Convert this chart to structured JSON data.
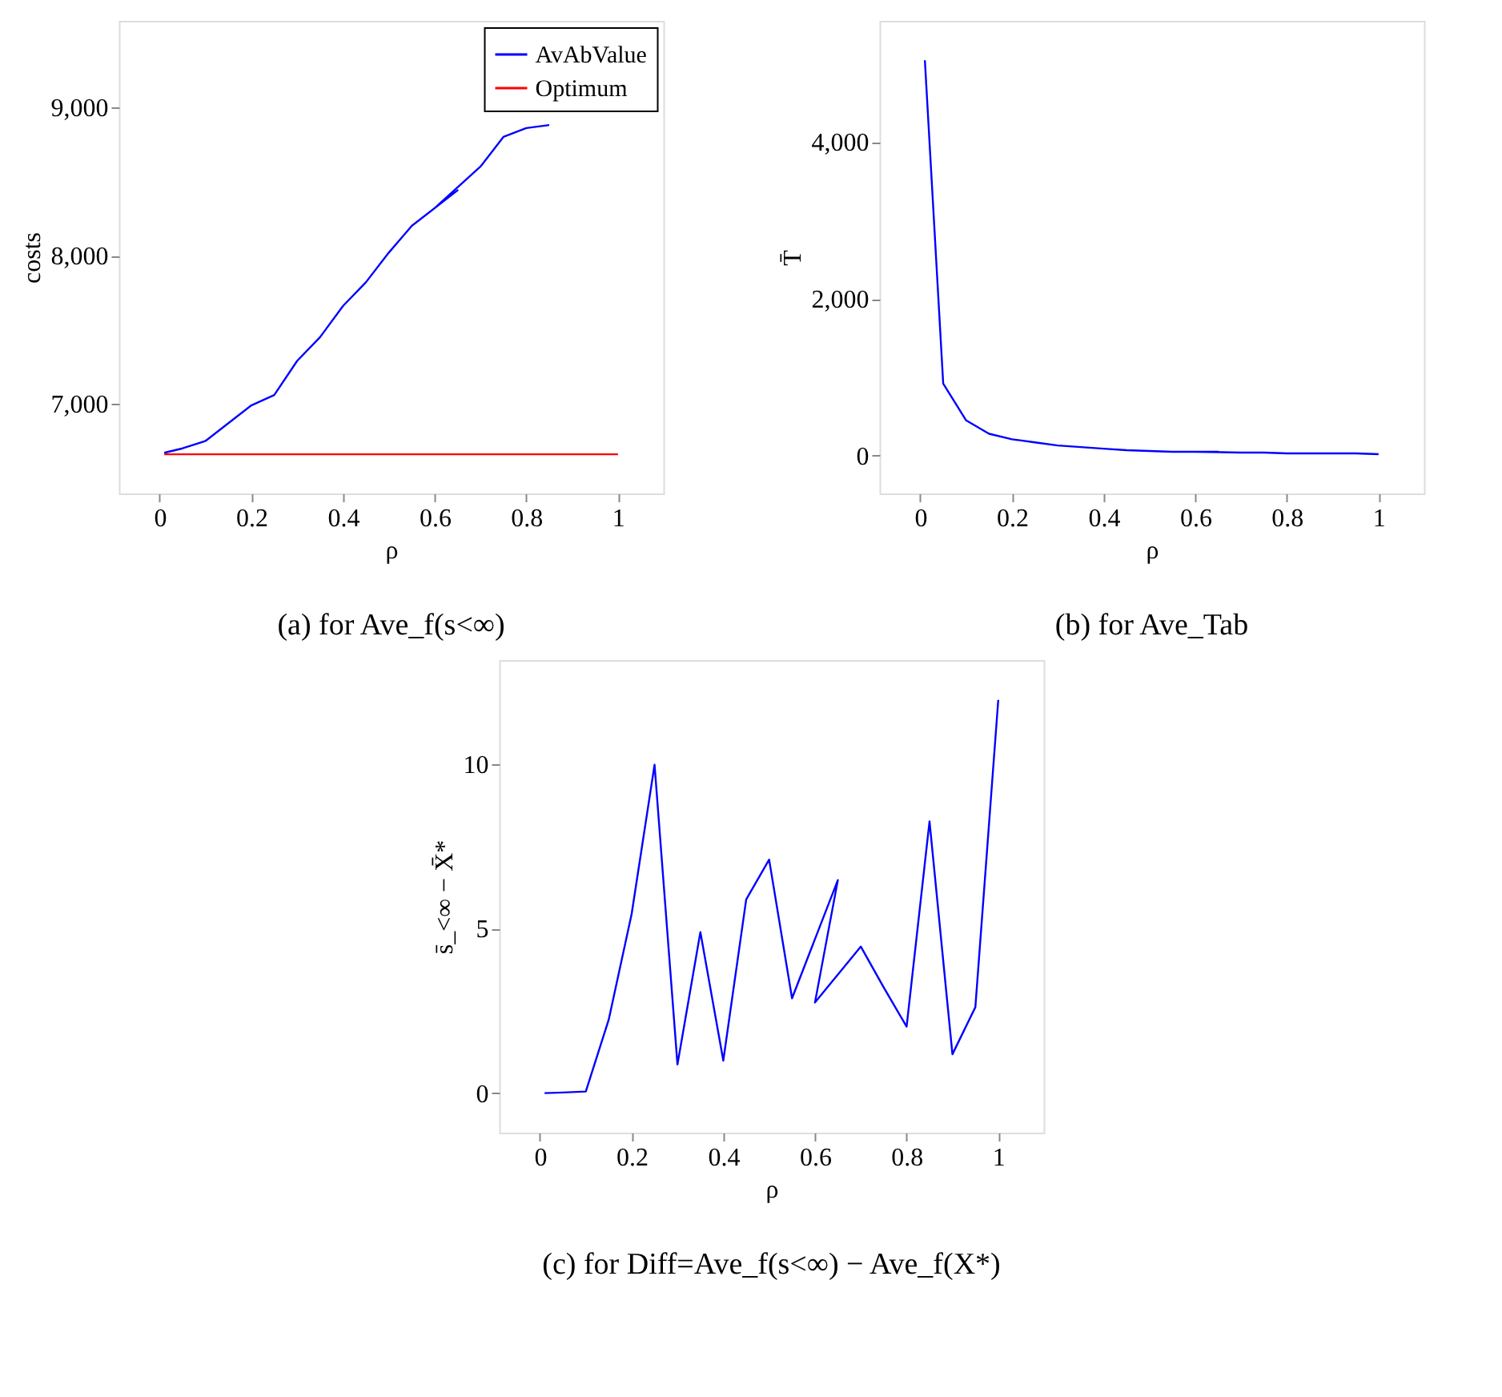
{
  "chart_data": [
    {
      "type": "line",
      "title": "(a) for Ave_f(s<∞)",
      "xlabel": "ρ",
      "ylabel": "costs",
      "legend": "top right",
      "series": [
        {
          "name": "AvAbValue",
          "color": "#0000ff",
          "x": [
            0.01,
            0.05,
            0.1,
            0.15,
            0.2,
            0.25,
            0.3,
            0.35,
            0.4,
            0.45,
            0.5,
            0.55,
            0.65,
            0.6,
            0.7,
            0.75,
            0.8,
            0.85
          ],
          "values": [
            6670,
            6700,
            6750,
            6870,
            6990,
            7060,
            7290,
            7450,
            7660,
            7820,
            8020,
            8200,
            8440,
            8320,
            8600,
            8800,
            8860,
            8880
          ]
        },
        {
          "name": "Optimum",
          "color": "#ff0000",
          "x": [
            0.01,
            1
          ],
          "values": [
            6660,
            6660
          ]
        }
      ],
      "xlim": [
        -0.089,
        1.099
      ],
      "ylim": [
        6396,
        9583
      ],
      "xticks": [
        0,
        0.2,
        0.4,
        0.6,
        0.8,
        1
      ],
      "yticks": [
        {
          "value": 7000,
          "label": "7,000"
        },
        {
          "value": 8000,
          "label": "8,000"
        },
        {
          "value": 9000,
          "label": "9,000"
        }
      ]
    },
    {
      "type": "line",
      "title": "(b) for Ave_Tab",
      "xlabel": "ρ",
      "ylabel": "T̄",
      "series": [
        {
          "color": "#0000ff",
          "x": [
            0.01,
            0.05,
            0.1,
            0.15,
            0.2,
            0.25,
            0.3,
            0.35,
            0.4,
            0.45,
            0.5,
            0.55,
            0.65,
            0.6,
            0.7,
            0.75,
            0.8,
            0.85,
            0.9,
            0.95,
            1
          ],
          "values": [
            5040,
            920,
            450,
            280,
            210,
            170,
            130,
            110,
            90,
            70,
            60,
            50,
            50,
            50,
            40,
            40,
            30,
            30,
            30,
            30,
            20
          ]
        }
      ],
      "xlim": [
        -0.089,
        1.099
      ],
      "ylim": [
        -481,
        5543
      ],
      "xticks": [
        0,
        0.2,
        0.4,
        0.6,
        0.8,
        1
      ],
      "yticks": [
        0,
        {
          "value": 2000,
          "label": "2,000"
        },
        {
          "value": 4000,
          "label": "4,000"
        }
      ]
    },
    {
      "type": "line",
      "title": "(c) for Diff=Ave_f(s<∞) − Ave_f(X*)",
      "xlabel": "ρ",
      "ylabel": "s̄_<∞ − X̄*",
      "series": [
        {
          "color": "#0000ff",
          "x": [
            0.01,
            0.05,
            0.1,
            0.15,
            0.2,
            0.25,
            0.3,
            0.35,
            0.4,
            0.45,
            0.5,
            0.55,
            0.65,
            0.6,
            0.7,
            0.75,
            0.8,
            0.85,
            0.9,
            0.95,
            1
          ],
          "values": [
            0,
            0.02,
            0.05,
            2.23,
            5.44,
            9.97,
            0.87,
            4.89,
            0.99,
            5.88,
            7.09,
            2.88,
            6.47,
            2.75,
            4.45,
            3.21,
            2.02,
            8.25,
            1.18,
            2.61,
            11.94
          ]
        }
      ],
      "xlim": [
        -0.089,
        1.099
      ],
      "ylim": [
        -1.2,
        13.15
      ],
      "xticks": [
        0,
        0.2,
        0.4,
        0.6,
        0.8,
        1
      ],
      "yticks": [
        0,
        5,
        10
      ]
    }
  ]
}
